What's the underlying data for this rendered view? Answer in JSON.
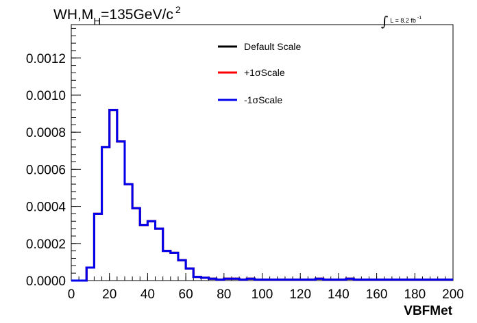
{
  "header": {
    "title_prefix": "WH,M",
    "title_subscript": "H",
    "title_suffix": "=135GeV/c",
    "title_superscript": "2",
    "lumi_label": "L = 8.2 fb",
    "lumi_superscript": "-1"
  },
  "chart_data": {
    "type": "line",
    "style": "step-histogram",
    "xlabel": "VBFMet",
    "ylabel": "",
    "xlim": [
      0,
      200
    ],
    "ylim": [
      0,
      0.00138
    ],
    "x_ticks": [
      "0",
      "20",
      "40",
      "60",
      "80",
      "100",
      "120",
      "140",
      "160",
      "180",
      "200"
    ],
    "y_ticks": [
      "0.0000",
      "0.0002",
      "0.0004",
      "0.0006",
      "0.0008",
      "0.0010",
      "0.0012"
    ],
    "bin_width": 4,
    "bin_edges_start": 0,
    "legend": {
      "position": "top-right",
      "entries": [
        "Default Scale",
        "+1σScale",
        "-1σScale"
      ]
    },
    "series": [
      {
        "name": "Default Scale",
        "color": "#000000",
        "values": [
          0,
          0,
          7e-05,
          0.00036,
          0.00072,
          0.00092,
          0.00075,
          0.00052,
          0.00039,
          0.0003,
          0.00032,
          0.00028,
          0.00016,
          0.00015,
          0.00011,
          6.5e-05,
          2e-05,
          1.5e-05,
          1e-05,
          5e-06,
          1e-05,
          1e-05,
          5e-06,
          1e-05,
          5e-06,
          5e-06,
          5e-06,
          5e-06,
          5e-06,
          5e-06,
          5e-06,
          5e-06,
          1e-05,
          5e-06,
          5e-06,
          5e-06,
          1e-05,
          5e-06,
          5e-06,
          5e-06,
          5e-06,
          5e-06,
          5e-06,
          5e-06,
          5e-06,
          5e-06,
          5e-06,
          5e-06,
          5e-06,
          5e-06
        ]
      },
      {
        "name": "+1σScale",
        "color": "#ff0000",
        "values": [
          0,
          0,
          7e-05,
          0.00036,
          0.00072,
          0.00092,
          0.00075,
          0.00052,
          0.00039,
          0.0003,
          0.00032,
          0.00028,
          0.00016,
          0.00015,
          0.00011,
          6.5e-05,
          2e-05,
          1.5e-05,
          1e-05,
          5e-06,
          1e-05,
          1e-05,
          5e-06,
          1e-05,
          5e-06,
          5e-06,
          5e-06,
          5e-06,
          5e-06,
          5e-06,
          5e-06,
          5e-06,
          1e-05,
          5e-06,
          5e-06,
          5e-06,
          1e-05,
          5e-06,
          5e-06,
          5e-06,
          5e-06,
          5e-06,
          5e-06,
          5e-06,
          5e-06,
          5e-06,
          5e-06,
          5e-06,
          5e-06,
          5e-06
        ]
      },
      {
        "name": "-1σScale",
        "color": "#0000ee",
        "values": [
          0,
          0,
          7e-05,
          0.00036,
          0.00072,
          0.00092,
          0.00075,
          0.00052,
          0.00039,
          0.0003,
          0.00032,
          0.00028,
          0.00016,
          0.00015,
          0.00011,
          6.5e-05,
          2e-05,
          1.5e-05,
          1e-05,
          5e-06,
          1e-05,
          1e-05,
          5e-06,
          1e-05,
          5e-06,
          5e-06,
          5e-06,
          5e-06,
          5e-06,
          5e-06,
          5e-06,
          5e-06,
          1e-05,
          5e-06,
          5e-06,
          5e-06,
          1e-05,
          5e-06,
          5e-06,
          5e-06,
          5e-06,
          5e-06,
          5e-06,
          5e-06,
          5e-06,
          5e-06,
          5e-06,
          5e-06,
          5e-06,
          5e-06
        ]
      }
    ]
  }
}
